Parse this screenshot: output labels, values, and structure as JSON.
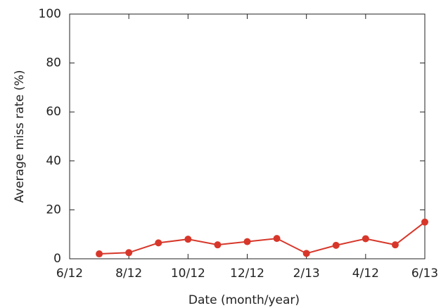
{
  "chart_data": {
    "type": "line",
    "x_label": "Date (month/year)",
    "y_label": "Average miss rate (%)",
    "categories": [
      "6/12",
      null,
      "8/12",
      null,
      "10/12",
      null,
      "12/12",
      null,
      "2/13",
      null,
      "4/12",
      null,
      "6/13"
    ],
    "values": [
      null,
      2,
      2.5,
      6.5,
      8,
      5.7,
      7,
      8.3,
      2.2,
      5.5,
      8.2,
      5.7,
      15
    ],
    "color": "#d7372a",
    "ylim": [
      0,
      100
    ],
    "yticks": [
      0,
      20,
      40,
      60,
      80,
      100
    ],
    "grid": false
  }
}
